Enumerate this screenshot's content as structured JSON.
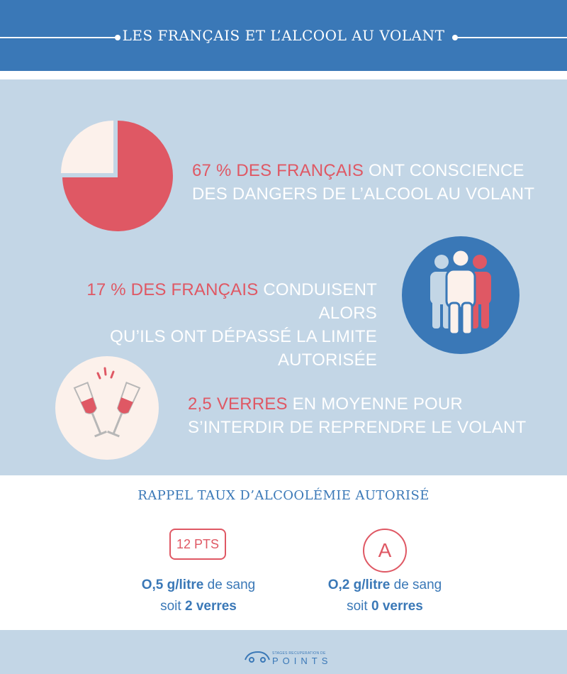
{
  "header": {
    "title": "LES FRANÇAIS ET L’ALCOOL AU VOLANT"
  },
  "stats": [
    {
      "highlight": "67 % DES FRANÇAIS",
      "text_line1": " ONT CONSCIENCE",
      "text_line2": "DES DANGERS DE L’ALCOOL AU VOLANT",
      "icon": "pie-chart-icon",
      "pie_fraction": 0.67
    },
    {
      "highlight": "17 % DES FRANÇAIS",
      "text_line1": " CONDUISENT ALORS",
      "text_line2": "QU’ILS ONT DÉPASSÉ LA LIMITE AUTORISÉE",
      "icon": "people-group-icon"
    },
    {
      "highlight": "2,5 VERRES",
      "text_line1": " EN MOYENNE POUR",
      "text_line2": "S’INTERDIR DE REPRENDRE LE VOLANT",
      "icon": "wine-glasses-icon"
    }
  ],
  "reminder": {
    "heading": "RAPPEL TAUX D’ALCOOLÉMIE AUTORISÉ",
    "items": [
      {
        "badge": "12 PTS",
        "rate": "O,5 g/litre",
        "rate_suffix": " de sang",
        "prefix": "soit ",
        "glasses": "2 verres"
      },
      {
        "badge": "A",
        "rate": "O,2 g/litre",
        "rate_suffix": " de sang",
        "prefix": "soit ",
        "glasses": "0 verres"
      }
    ]
  },
  "footer": {
    "logo_small": "STAGES RECUPERATION DE",
    "logo_big": "POINTS"
  },
  "colors": {
    "blue": "#3a78b7",
    "red": "#df5864",
    "light_blue": "#c3d6e6",
    "cream": "#fcf1eb",
    "white": "#ffffff"
  }
}
